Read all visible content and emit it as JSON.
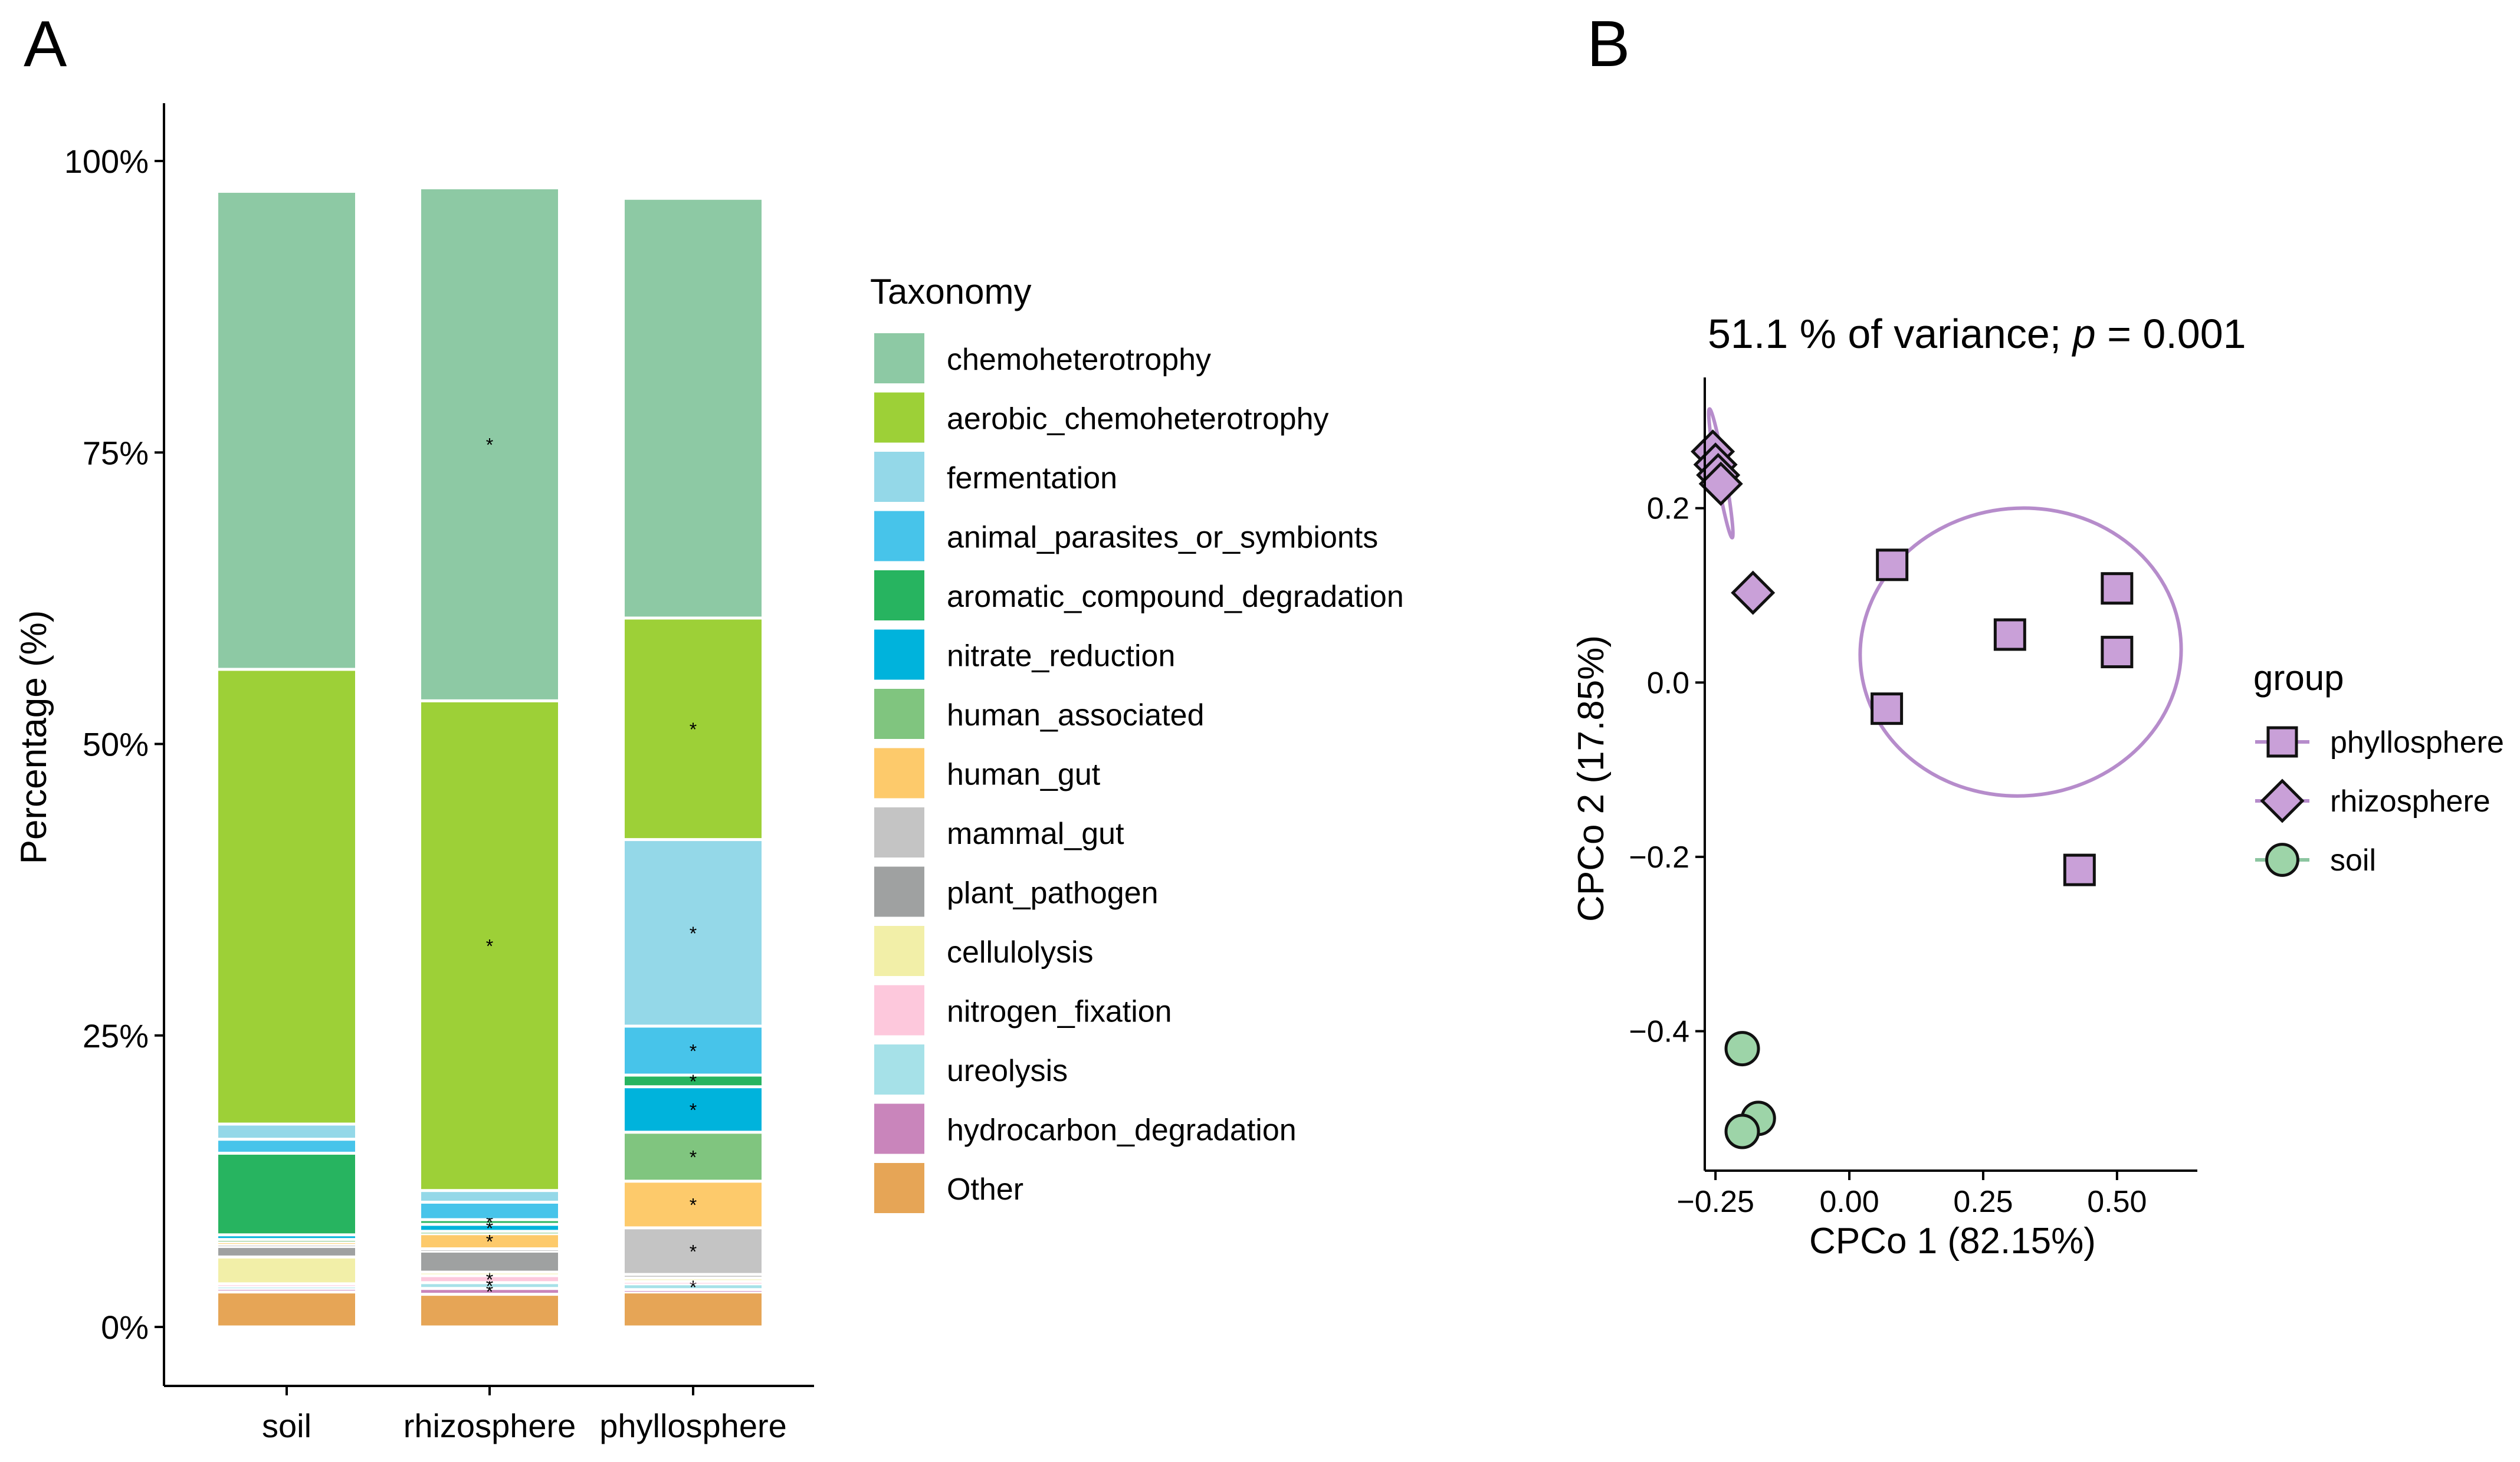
{
  "panel_labels": {
    "a": "A",
    "b": "B"
  },
  "chart_data": [
    {
      "type": "bar",
      "stacked": true,
      "title": "",
      "xlabel": "",
      "ylabel": "Percentage (%)",
      "ylim": [
        0,
        100
      ],
      "yticks": [
        {
          "value": 0,
          "label": "0%"
        },
        {
          "value": 25,
          "label": "25%"
        },
        {
          "value": 50,
          "label": "50%"
        },
        {
          "value": 75,
          "label": "75%"
        },
        {
          "value": 100,
          "label": "100%"
        }
      ],
      "categories": [
        "soil",
        "rhizosphere",
        "phyllosphere"
      ],
      "legend_title": "Taxonomy",
      "legend_position": "right",
      "series": [
        {
          "name": "chemoheterotrophy",
          "color": "#8dc9a4",
          "values": [
            41.0,
            44.0,
            36.0
          ],
          "significant": [
            false,
            true,
            false
          ]
        },
        {
          "name": "aerobic_chemoheterotrophy",
          "color": "#9dd037",
          "values": [
            39.0,
            42.0,
            19.0
          ],
          "significant": [
            false,
            true,
            true
          ]
        },
        {
          "name": "fermentation",
          "color": "#94d8e8",
          "values": [
            1.3,
            1.0,
            16.0
          ],
          "significant": [
            false,
            false,
            true
          ]
        },
        {
          "name": "animal_parasites_or_symbionts",
          "color": "#47c4ea",
          "values": [
            1.2,
            1.5,
            4.2
          ],
          "significant": [
            false,
            false,
            true
          ]
        },
        {
          "name": "aromatic_compound_degradation",
          "color": "#27b460",
          "values": [
            7.0,
            0.4,
            1.0
          ],
          "significant": [
            false,
            true,
            true
          ]
        },
        {
          "name": "nitrate_reduction",
          "color": "#00b3dc",
          "values": [
            0.4,
            0.6,
            3.9
          ],
          "significant": [
            false,
            true,
            true
          ]
        },
        {
          "name": "human_associated",
          "color": "#80c57f",
          "values": [
            0.2,
            0.2,
            4.2
          ],
          "significant": [
            false,
            false,
            true
          ]
        },
        {
          "name": "human_gut",
          "color": "#fdca6b",
          "values": [
            0.2,
            1.3,
            4.0
          ],
          "significant": [
            false,
            true,
            true
          ]
        },
        {
          "name": "mammal_gut",
          "color": "#c4c4c4",
          "values": [
            0.2,
            0.2,
            4.0
          ],
          "significant": [
            false,
            false,
            true
          ]
        },
        {
          "name": "plant_pathogen",
          "color": "#9fa1a1",
          "values": [
            0.9,
            1.8,
            0.3
          ],
          "significant": [
            false,
            false,
            false
          ]
        },
        {
          "name": "cellulolysis",
          "color": "#f2efa8",
          "values": [
            2.3,
            0.3,
            0.3
          ],
          "significant": [
            false,
            false,
            false
          ]
        },
        {
          "name": "nitrogen_fixation",
          "color": "#fdc8dc",
          "values": [
            0.2,
            0.6,
            0.2
          ],
          "significant": [
            false,
            true,
            false
          ]
        },
        {
          "name": "ureolysis",
          "color": "#a6e1e8",
          "values": [
            0.2,
            0.5,
            0.5
          ],
          "significant": [
            false,
            true,
            true
          ]
        },
        {
          "name": "hydrocarbon_degradation",
          "color": "#c985bb",
          "values": [
            0.3,
            0.5,
            0.2
          ],
          "significant": [
            false,
            true,
            false
          ]
        },
        {
          "name": "Other",
          "color": "#e6a556",
          "values": [
            3.0,
            2.8,
            3.0
          ],
          "significant": [
            false,
            false,
            false
          ]
        }
      ]
    },
    {
      "type": "scatter",
      "title_prefix": "51.1 % of variance; ",
      "title_p": "p",
      "title_suffix": " = 0.001",
      "xlabel": "CPCo 1 (82.15%)",
      "ylabel": "CPCo 2 (17.85%)",
      "xlim": [
        -0.27,
        0.65
      ],
      "ylim": [
        -0.56,
        0.35
      ],
      "xticks": [
        {
          "value": -0.25,
          "label": "−0.25"
        },
        {
          "value": 0.0,
          "label": "0.00"
        },
        {
          "value": 0.25,
          "label": "0.25"
        },
        {
          "value": 0.5,
          "label": "0.50"
        }
      ],
      "yticks": [
        {
          "value": 0.2,
          "label": "0.2"
        },
        {
          "value": 0.0,
          "label": "0.0"
        },
        {
          "value": -0.2,
          "label": "−0.2"
        },
        {
          "value": -0.4,
          "label": "−0.4"
        }
      ],
      "legend_title": "group",
      "legend_position": "right",
      "series": [
        {
          "name": "phyllosphere",
          "marker": "square",
          "fill": "#c9a0d8",
          "line": "#b68ccb",
          "points": [
            [
              0.08,
              0.135
            ],
            [
              0.07,
              -0.03
            ],
            [
              0.3,
              0.055
            ],
            [
              0.5,
              0.108
            ],
            [
              0.5,
              0.035
            ],
            [
              0.43,
              -0.215
            ]
          ],
          "ellipse": {
            "cx": 0.32,
            "cy": 0.035,
            "rx": 0.3,
            "ry": 0.165,
            "angle": -5
          }
        },
        {
          "name": "rhizosphere",
          "marker": "diamond",
          "fill": "#c9a0d8",
          "line": "#b68ccb",
          "points": [
            [
              -0.255,
              0.265
            ],
            [
              -0.25,
              0.25
            ],
            [
              -0.245,
              0.238
            ],
            [
              -0.24,
              0.228
            ],
            [
              -0.18,
              0.103
            ]
          ],
          "ellipse": {
            "cx": -0.24,
            "cy": 0.24,
            "rx": 0.008,
            "ry": 0.075,
            "angle": -10
          }
        },
        {
          "name": "soil",
          "marker": "circle",
          "fill": "#9dd4a8",
          "line": "#8cc5a0",
          "points": [
            [
              -0.2,
              -0.42
            ],
            [
              -0.17,
              -0.5
            ],
            [
              -0.2,
              -0.515
            ]
          ]
        }
      ]
    }
  ]
}
